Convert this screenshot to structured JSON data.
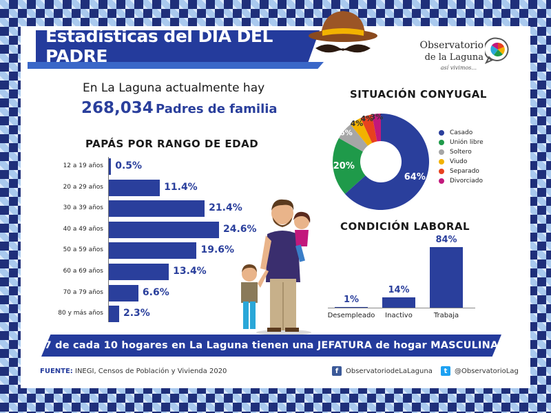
{
  "header": {
    "title": "Estadísticas del DÍA DEL PADRE",
    "logo_line1": "Observatorio",
    "logo_line2": "de la Laguna",
    "logo_tagline": "así vivimos..."
  },
  "intro": {
    "line1": "En La Laguna actualmente hay",
    "number": "268,034",
    "unit": "Padres de familia"
  },
  "sections": {
    "age_title": "PAPÁS POR RANGO DE EDAD",
    "marital_title": "SITUACIÓN CONYUGAL",
    "labor_title": "CONDICIÓN LABORAL"
  },
  "chart_data": [
    {
      "type": "bar",
      "orientation": "horizontal",
      "title": "PAPÁS POR RANGO DE EDAD",
      "categories": [
        "12 a 19 años",
        "20 a 29 años",
        "30 a 39 años",
        "40 a 49 años",
        "50 a 59 años",
        "60 a 69 años",
        "70 a 79 años",
        "80 y más años"
      ],
      "values": [
        0.5,
        11.4,
        21.4,
        24.6,
        19.6,
        13.4,
        6.6,
        2.3
      ],
      "value_labels": [
        "0.5%",
        "11.4%",
        "21.4%",
        "24.6%",
        "19.6%",
        "13.4%",
        "6.6%",
        "2.3%"
      ],
      "color": "#2a3f9c"
    },
    {
      "type": "pie",
      "donut": true,
      "title": "SITUACIÓN CONYUGAL",
      "labels": [
        "Casado",
        "Unión libre",
        "Soltero",
        "Viudo",
        "Separado",
        "Divorciado"
      ],
      "values": [
        64,
        20,
        6,
        4,
        4,
        3
      ],
      "value_labels": [
        "64%",
        "20%",
        "6%",
        "4%",
        "4%",
        "3%"
      ],
      "colors": [
        "#2a3f9c",
        "#1f9a4a",
        "#a6a6a6",
        "#f2b200",
        "#e8411e",
        "#c2187c"
      ],
      "legend": "right"
    },
    {
      "type": "bar",
      "orientation": "vertical",
      "title": "CONDICIÓN LABORAL",
      "categories": [
        "Desempleado",
        "Inactivo",
        "Trabaja"
      ],
      "values": [
        1,
        14,
        84
      ],
      "value_labels": [
        "1%",
        "14%",
        "84%"
      ],
      "color": "#2a3f9c"
    }
  ],
  "footer": {
    "banner": "7 de cada 10 hogares en La Laguna tienen una JEFATURA de hogar MASCULINA",
    "source_label": "FUENTE:",
    "source_text": "INEGI, Censos de Población y Vivienda 2020",
    "facebook": "ObservatoriodeLaLaguna",
    "twitter": "@ObservatorioLag"
  },
  "icons": [
    "hat-mustache-icon",
    "observatorio-logo-icon",
    "facebook-icon",
    "twitter-icon",
    "family-illustration"
  ]
}
